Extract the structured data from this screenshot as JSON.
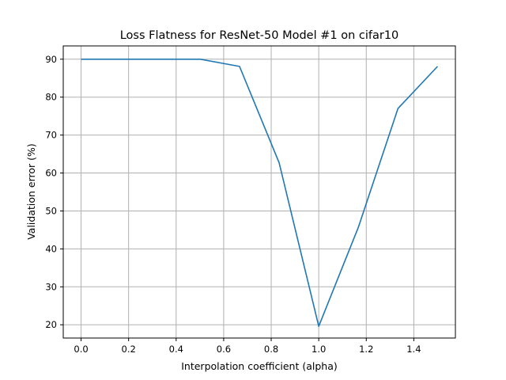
{
  "chart_data": {
    "type": "line",
    "title": "Loss Flatness for ResNet-50 Model #1 on cifar10",
    "xlabel": "Interpolation coefficient (alpha)",
    "ylabel": "Validation error (%)",
    "xlim": [
      -0.075,
      1.575
    ],
    "ylim": [
      16.5,
      93.5
    ],
    "xticks": [
      0.0,
      0.2,
      0.4,
      0.6,
      0.8,
      1.0,
      1.2,
      1.4
    ],
    "xtick_labels": [
      "0.0",
      "0.2",
      "0.4",
      "0.6",
      "0.8",
      "1.0",
      "1.2",
      "1.4"
    ],
    "yticks": [
      20,
      30,
      40,
      50,
      60,
      70,
      80,
      90
    ],
    "ytick_labels": [
      "20",
      "30",
      "40",
      "50",
      "60",
      "70",
      "80",
      "90"
    ],
    "grid": true,
    "series": [
      {
        "color": "#1f77b4",
        "x": [
          0.0,
          0.1667,
          0.3333,
          0.5,
          0.6667,
          0.8333,
          1.0,
          1.1667,
          1.3333,
          1.5
        ],
        "y": [
          90.0,
          90.0,
          90.0,
          90.0,
          88.1,
          62.7,
          19.6,
          45.7,
          77.0,
          88.1
        ]
      }
    ]
  }
}
